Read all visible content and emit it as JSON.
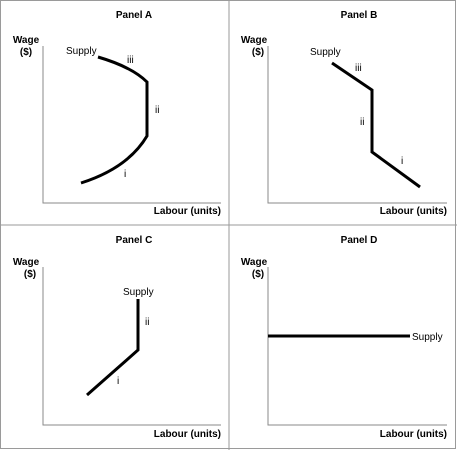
{
  "figure": {
    "panels": [
      {
        "id": "a",
        "title": "Panel A",
        "y_label_line1": "Wage",
        "y_label_line2": "($)",
        "x_label": "Labour (units)",
        "curve_label": "Supply",
        "segment_labels": [
          "i",
          "ii",
          "iii"
        ],
        "shape": "backward-bending"
      },
      {
        "id": "b",
        "title": "Panel B",
        "y_label_line1": "Wage",
        "y_label_line2": "($)",
        "x_label": "Labour (units)",
        "curve_label": "Supply",
        "segment_labels": [
          "i",
          "ii",
          "iii"
        ],
        "shape": "downward, vertical, downward"
      },
      {
        "id": "c",
        "title": "Panel C",
        "y_label_line1": "Wage",
        "y_label_line2": "($)",
        "x_label": "Labour (units)",
        "curve_label": "Supply",
        "segment_labels": [
          "i",
          "ii"
        ],
        "shape": "upward then vertical"
      },
      {
        "id": "d",
        "title": "Panel D",
        "y_label_line1": "Wage",
        "y_label_line2": "($)",
        "x_label": "Labour (units)",
        "curve_label": "Supply",
        "segment_labels": [],
        "shape": "horizontal"
      }
    ]
  }
}
